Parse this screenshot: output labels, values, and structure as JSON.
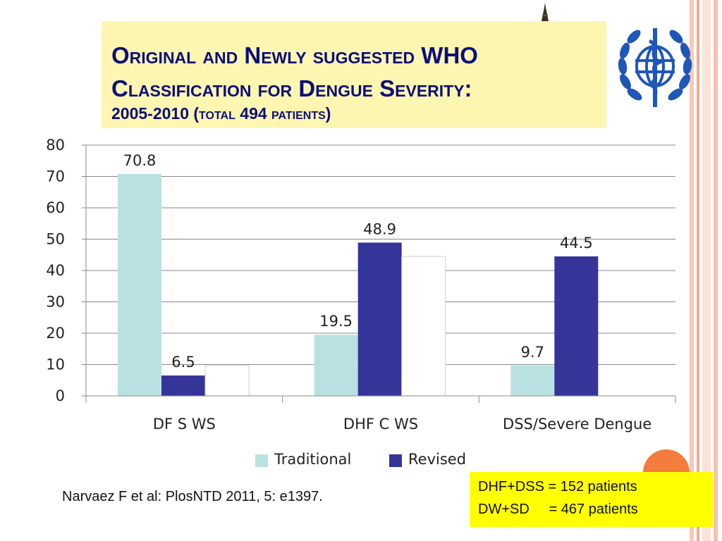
{
  "title": {
    "line1": "Original and Newly suggested WHO",
    "line2": "Classification for Dengue Severity:",
    "line3": "2005-2010 (total 494 patients)"
  },
  "citation": "Narvaez  F et al: PlosNTD 2011, 5: e1397.",
  "note": {
    "line1": "DHF+DSS = 152 patients",
    "line2": "DW+SD     = 467 patients"
  },
  "colors": {
    "traditional": "#b9e1e2",
    "revised": "#343499",
    "title_text": "#0b0e7a",
    "title_bg": "#fdf6b0",
    "note_bg": "#ffff00",
    "accent": "#f47c3c"
  },
  "chart_data": {
    "type": "bar",
    "categories": [
      "DF S WS",
      "DHF C WS",
      "DSS/Severe Dengue"
    ],
    "series": [
      {
        "name": "Traditional",
        "values": [
          70.8,
          19.5,
          9.7
        ]
      },
      {
        "name": "Revised",
        "values": [
          6.5,
          48.9,
          44.5
        ]
      },
      {
        "name": "",
        "values": [
          9.7,
          44.5,
          0
        ]
      }
    ],
    "data_labels": [
      [
        "70.8",
        "6.5",
        ""
      ],
      [
        "19.5",
        "48.9",
        ""
      ],
      [
        "9.7",
        "44.5",
        ""
      ]
    ],
    "ylim": [
      0,
      80
    ],
    "yticks": [
      "0",
      "10",
      "20",
      "30",
      "40",
      "50",
      "60",
      "70",
      "80"
    ],
    "grid": true,
    "legend_position": "bottom"
  }
}
